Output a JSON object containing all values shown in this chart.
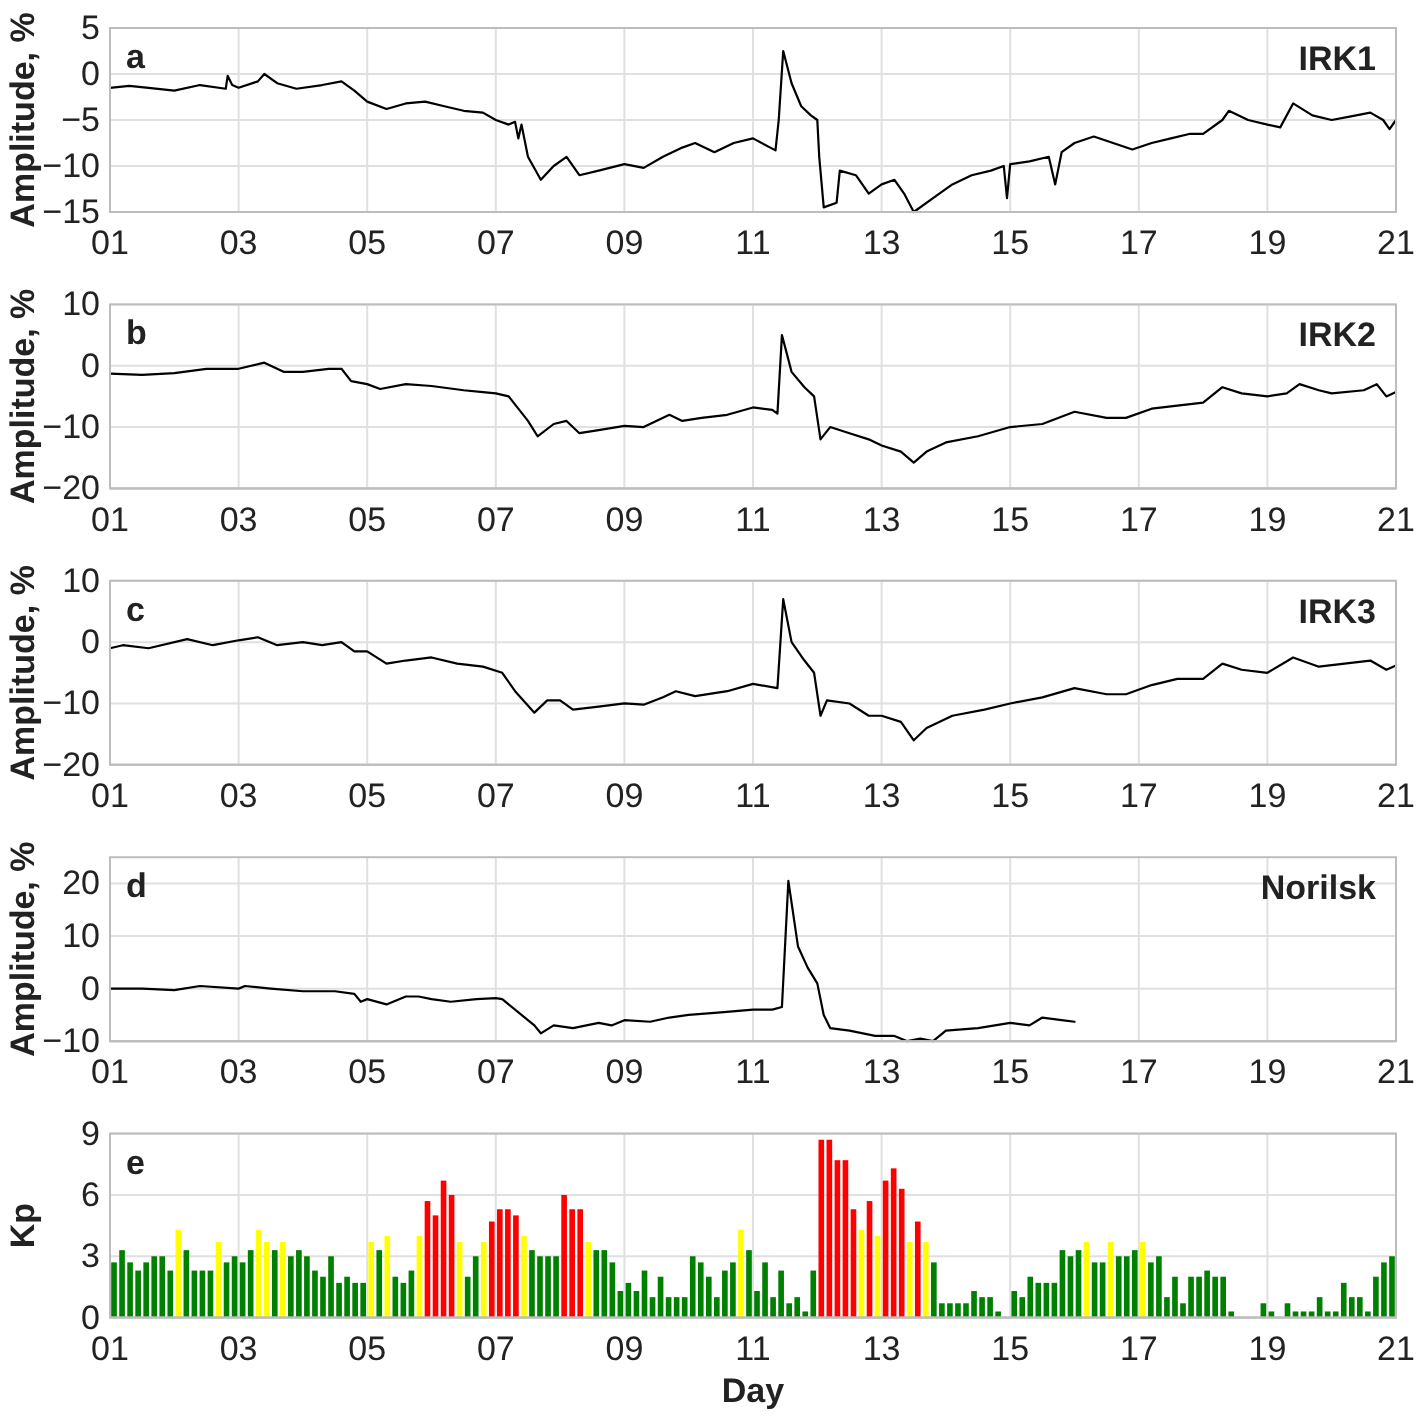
{
  "chart_data": [
    {
      "type": "line",
      "title": "IRK1",
      "annotations": [
        "a"
      ],
      "ylabel": "Amplitude, %",
      "color": "#000000",
      "grid": true,
      "xlim": [
        1,
        21
      ],
      "xticks": [
        {
          "value": 1,
          "label": "01"
        },
        {
          "value": 3,
          "label": "03"
        },
        {
          "value": 5,
          "label": "05"
        },
        {
          "value": 7,
          "label": "07"
        },
        {
          "value": 9,
          "label": "09"
        },
        {
          "value": 11,
          "label": "11"
        },
        {
          "value": 13,
          "label": "13"
        },
        {
          "value": 15,
          "label": "15"
        },
        {
          "value": 17,
          "label": "17"
        },
        {
          "value": 19,
          "label": "19"
        },
        {
          "value": 21,
          "label": "21"
        }
      ],
      "ylim": [
        -15,
        5
      ],
      "yticks": [
        -15,
        -10,
        -5,
        0,
        5
      ],
      "x": [
        1.0,
        1.3,
        1.6,
        2.0,
        2.4,
        2.8,
        2.83,
        2.9,
        3.0,
        3.3,
        3.4,
        3.6,
        3.9,
        4.3,
        4.6,
        4.8,
        5.0,
        5.3,
        5.6,
        5.9,
        6.2,
        6.5,
        6.8,
        7.0,
        7.2,
        7.3,
        7.35,
        7.4,
        7.5,
        7.7,
        7.9,
        8.1,
        8.3,
        8.6,
        9.0,
        9.3,
        9.6,
        9.9,
        10.1,
        10.4,
        10.7,
        11.0,
        11.35,
        11.4,
        11.47,
        11.6,
        11.75,
        11.9,
        12.0,
        12.03,
        12.1,
        12.3,
        12.35,
        12.6,
        12.8,
        13.0,
        13.2,
        13.35,
        13.5,
        13.8,
        14.1,
        14.4,
        14.7,
        14.9,
        14.95,
        15.0,
        15.3,
        15.6,
        15.7,
        15.8,
        16.0,
        16.3,
        16.6,
        16.9,
        17.2,
        17.5,
        17.8,
        18.0,
        18.3,
        18.4,
        18.7,
        19.0,
        19.2,
        19.4,
        19.7,
        20.0,
        20.3,
        20.6,
        20.8,
        20.9,
        21.0
      ],
      "values": [
        -1.5,
        -1.3,
        -1.5,
        -1.8,
        -1.2,
        -1.6,
        -0.2,
        -1.2,
        -1.5,
        -0.8,
        0,
        -1.0,
        -1.6,
        -1.2,
        -0.8,
        -1.8,
        -3.0,
        -3.8,
        -3.2,
        -3.0,
        -3.5,
        -4.0,
        -4.2,
        -5.0,
        -5.5,
        -5.2,
        -7,
        -5.5,
        -9,
        -11.5,
        -10,
        -9,
        -11,
        -10.5,
        -9.8,
        -10.2,
        -9,
        -8,
        -7.5,
        -8.5,
        -7.5,
        -7,
        -8.3,
        -5,
        2.5,
        -1,
        -3.5,
        -4.5,
        -5,
        -9,
        -14.5,
        -14,
        -10.5,
        -11,
        -13,
        -12,
        -11.5,
        -13,
        -15,
        -13.5,
        -12,
        -11,
        -10.5,
        -10,
        -13.5,
        -9.8,
        -9.5,
        -9,
        -12,
        -8.5,
        -7.5,
        -6.8,
        -7.5,
        -8.2,
        -7.5,
        -7,
        -6.5,
        -6.5,
        -5,
        -4,
        -5,
        -5.5,
        -5.8,
        -3.2,
        -4.5,
        -5,
        -4.6,
        -4.2,
        -5,
        -6,
        -5
      ]
    },
    {
      "type": "line",
      "title": "IRK2",
      "annotations": [
        "b"
      ],
      "ylabel": "Amplitude, %",
      "color": "#000000",
      "grid": true,
      "xlim": [
        1,
        21
      ],
      "xticks": [
        {
          "value": 1,
          "label": "01"
        },
        {
          "value": 3,
          "label": "03"
        },
        {
          "value": 5,
          "label": "05"
        },
        {
          "value": 7,
          "label": "07"
        },
        {
          "value": 9,
          "label": "09"
        },
        {
          "value": 11,
          "label": "11"
        },
        {
          "value": 13,
          "label": "13"
        },
        {
          "value": 15,
          "label": "15"
        },
        {
          "value": 17,
          "label": "17"
        },
        {
          "value": 19,
          "label": "19"
        },
        {
          "value": 21,
          "label": "21"
        }
      ],
      "ylim": [
        -20,
        10
      ],
      "yticks": [
        -20,
        -10,
        0,
        10
      ],
      "x": [
        1.0,
        1.5,
        2.0,
        2.5,
        3.0,
        3.4,
        3.7,
        4.0,
        4.4,
        4.6,
        4.75,
        5.0,
        5.2,
        5.6,
        6.0,
        6.5,
        6.8,
        7.0,
        7.2,
        7.5,
        7.65,
        7.9,
        8.1,
        8.3,
        8.6,
        9.0,
        9.3,
        9.7,
        9.9,
        10.2,
        10.6,
        11.0,
        11.3,
        11.38,
        11.45,
        11.6,
        11.8,
        11.95,
        12.05,
        12.2,
        12.5,
        12.8,
        13.0,
        13.3,
        13.5,
        13.7,
        14.0,
        14.5,
        15.0,
        15.5,
        16.0,
        16.5,
        16.8,
        17.2,
        17.6,
        18.0,
        18.3,
        18.6,
        19.0,
        19.3,
        19.5,
        19.8,
        20.0,
        20.5,
        20.7,
        20.85,
        21.0
      ],
      "values": [
        -1.3,
        -1.5,
        -1.2,
        -0.5,
        -0.5,
        0.5,
        -1,
        -1,
        -0.5,
        -0.5,
        -2.5,
        -3,
        -3.8,
        -3,
        -3.3,
        -4,
        -4.3,
        -4.5,
        -5,
        -9,
        -11.5,
        -9.5,
        -9,
        -11,
        -10.5,
        -9.8,
        -10,
        -8,
        -9,
        -8.5,
        -8,
        -6.8,
        -7.2,
        -7.8,
        5,
        -1,
        -3.5,
        -5,
        -12,
        -10,
        -11,
        -12,
        -13,
        -14,
        -15.8,
        -14,
        -12.5,
        -11.5,
        -10,
        -9.5,
        -7.5,
        -8.5,
        -8.5,
        -7,
        -6.5,
        -6,
        -3.5,
        -4.5,
        -5,
        -4.5,
        -3,
        -4,
        -4.5,
        -4,
        -3,
        -5,
        -4.3
      ]
    },
    {
      "type": "line",
      "title": "IRK3",
      "annotations": [
        "c"
      ],
      "ylabel": "Amplitude, %",
      "color": "#000000",
      "grid": true,
      "xlim": [
        1,
        21
      ],
      "xticks": [
        {
          "value": 1,
          "label": "01"
        },
        {
          "value": 3,
          "label": "03"
        },
        {
          "value": 5,
          "label": "05"
        },
        {
          "value": 7,
          "label": "07"
        },
        {
          "value": 9,
          "label": "09"
        },
        {
          "value": 11,
          "label": "11"
        },
        {
          "value": 13,
          "label": "13"
        },
        {
          "value": 15,
          "label": "15"
        },
        {
          "value": 17,
          "label": "17"
        },
        {
          "value": 19,
          "label": "19"
        },
        {
          "value": 21,
          "label": "21"
        }
      ],
      "ylim": [
        -20,
        10
      ],
      "yticks": [
        -20,
        -10,
        0,
        10
      ],
      "x": [
        1.0,
        1.2,
        1.6,
        2.2,
        2.6,
        3.0,
        3.3,
        3.6,
        4.0,
        4.3,
        4.6,
        4.8,
        5.0,
        5.3,
        5.6,
        6.0,
        6.4,
        6.8,
        7.1,
        7.3,
        7.6,
        7.8,
        8.0,
        8.2,
        8.6,
        9.0,
        9.3,
        9.6,
        9.8,
        10.1,
        10.6,
        11.0,
        11.38,
        11.47,
        11.6,
        11.8,
        11.95,
        12.05,
        12.15,
        12.5,
        12.8,
        13.0,
        13.3,
        13.5,
        13.7,
        14.1,
        14.6,
        15.0,
        15.5,
        16.0,
        16.5,
        16.8,
        17.2,
        17.6,
        18.0,
        18.3,
        18.6,
        19.0,
        19.4,
        19.8,
        20.2,
        20.6,
        20.85,
        21.0
      ],
      "values": [
        -1,
        -0.5,
        -1,
        0.5,
        -0.5,
        0.3,
        0.8,
        -0.5,
        0,
        -0.5,
        0,
        -1.5,
        -1.5,
        -3.5,
        -3,
        -2.5,
        -3.5,
        -4,
        -5,
        -8,
        -11.5,
        -9.5,
        -9.5,
        -11,
        -10.5,
        -10,
        -10.2,
        -9,
        -8,
        -8.8,
        -8,
        -6.8,
        -7.5,
        7,
        0,
        -3,
        -5,
        -12,
        -9.5,
        -10,
        -12,
        -12,
        -13,
        -16,
        -14,
        -12,
        -11,
        -10,
        -9,
        -7.5,
        -8.5,
        -8.5,
        -7,
        -6,
        -6,
        -3.5,
        -4.5,
        -5,
        -2.5,
        -4,
        -3.5,
        -3,
        -4.5,
        -3.8
      ]
    },
    {
      "type": "line",
      "title": "Norilsk",
      "annotations": [
        "d"
      ],
      "ylabel": "Amplitude, %",
      "color": "#000000",
      "grid": true,
      "xlim": [
        1,
        21
      ],
      "xticks": [
        {
          "value": 1,
          "label": "01"
        },
        {
          "value": 3,
          "label": "03"
        },
        {
          "value": 5,
          "label": "05"
        },
        {
          "value": 7,
          "label": "07"
        },
        {
          "value": 9,
          "label": "09"
        },
        {
          "value": 11,
          "label": "11"
        },
        {
          "value": 13,
          "label": "13"
        },
        {
          "value": 15,
          "label": "15"
        },
        {
          "value": 17,
          "label": "17"
        },
        {
          "value": 19,
          "label": "19"
        },
        {
          "value": 21,
          "label": "21"
        }
      ],
      "ylim": [
        -10,
        25
      ],
      "yticks": [
        -10,
        0,
        10,
        20
      ],
      "x": [
        1.0,
        1.5,
        2.0,
        2.4,
        3.0,
        3.1,
        3.5,
        4.0,
        4.5,
        4.8,
        4.9,
        5.0,
        5.3,
        5.6,
        5.8,
        6.0,
        6.3,
        6.7,
        7.0,
        7.1,
        7.4,
        7.6,
        7.7,
        7.9,
        8.2,
        8.6,
        8.8,
        9.0,
        9.4,
        9.7,
        10.0,
        10.5,
        11.0,
        11.3,
        11.45,
        11.55,
        11.7,
        11.85,
        12.0,
        12.1,
        12.2,
        12.5,
        12.9,
        13.2,
        13.4,
        13.6,
        13.8,
        14.0,
        14.5,
        15.0,
        15.3,
        15.5,
        15.8,
        16.0
      ],
      "values": [
        0,
        0,
        -0.3,
        0.5,
        0,
        0.5,
        0,
        -0.5,
        -0.5,
        -1,
        -2.5,
        -2,
        -3,
        -1.5,
        -1.5,
        -2,
        -2.5,
        -2,
        -1.8,
        -2,
        -5,
        -7,
        -8.5,
        -7,
        -7.5,
        -6.5,
        -7,
        -6,
        -6.3,
        -5.5,
        -5,
        -4.5,
        -4,
        -4,
        -3.5,
        20.5,
        8,
        4,
        1,
        -5,
        -7.5,
        -8,
        -9,
        -9,
        -10,
        -9.5,
        -10,
        -8,
        -7.5,
        -6.5,
        -7,
        -5.5,
        -6,
        -6.3
      ]
    },
    {
      "type": "bar",
      "annotations": [
        "e"
      ],
      "ylabel": "Kp",
      "xlabel": "Day",
      "grid": true,
      "xlim": [
        1,
        21
      ],
      "xticks": [
        {
          "value": 1,
          "label": "01"
        },
        {
          "value": 3,
          "label": "03"
        },
        {
          "value": 5,
          "label": "05"
        },
        {
          "value": 7,
          "label": "07"
        },
        {
          "value": 9,
          "label": "09"
        },
        {
          "value": 11,
          "label": "11"
        },
        {
          "value": 13,
          "label": "13"
        },
        {
          "value": 15,
          "label": "15"
        },
        {
          "value": 17,
          "label": "17"
        },
        {
          "value": 19,
          "label": "19"
        },
        {
          "value": 21,
          "label": "21"
        }
      ],
      "ylim": [
        0,
        9
      ],
      "yticks": [
        0,
        3,
        6,
        9
      ],
      "x": [
        1.0625,
        1.1875,
        1.3125,
        1.4375,
        1.5625,
        1.6875,
        1.8125,
        1.9375,
        2.0625,
        2.1875,
        2.3125,
        2.4375,
        2.5625,
        2.6875,
        2.8125,
        2.9375,
        3.0625,
        3.1875,
        3.3125,
        3.4375,
        3.5625,
        3.6875,
        3.8125,
        3.9375,
        4.0625,
        4.1875,
        4.3125,
        4.4375,
        4.5625,
        4.6875,
        4.8125,
        4.9375,
        5.0625,
        5.1875,
        5.3125,
        5.4375,
        5.5625,
        5.6875,
        5.8125,
        5.9375,
        6.0625,
        6.1875,
        6.3125,
        6.4375,
        6.5625,
        6.6875,
        6.8125,
        6.9375,
        7.0625,
        7.1875,
        7.3125,
        7.4375,
        7.5625,
        7.6875,
        7.8125,
        7.9375,
        8.0625,
        8.1875,
        8.3125,
        8.4375,
        8.5625,
        8.6875,
        8.8125,
        8.9375,
        9.0625,
        9.1875,
        9.3125,
        9.4375,
        9.5625,
        9.6875,
        9.8125,
        9.9375,
        10.0625,
        10.1875,
        10.3125,
        10.4375,
        10.5625,
        10.6875,
        10.8125,
        10.9375,
        11.0625,
        11.1875,
        11.3125,
        11.4375,
        11.5625,
        11.6875,
        11.8125,
        11.9375,
        12.0625,
        12.1875,
        12.3125,
        12.4375,
        12.5625,
        12.6875,
        12.8125,
        12.9375,
        13.0625,
        13.1875,
        13.3125,
        13.4375,
        13.5625,
        13.6875,
        13.8125,
        13.9375,
        14.0625,
        14.1875,
        14.3125,
        14.4375,
        14.5625,
        14.6875,
        14.8125,
        14.9375,
        15.0625,
        15.1875,
        15.3125,
        15.4375,
        15.5625,
        15.6875,
        15.8125,
        15.9375,
        16.0625,
        16.1875,
        16.3125,
        16.4375,
        16.5625,
        16.6875,
        16.8125,
        16.9375,
        17.0625,
        17.1875,
        17.3125,
        17.4375,
        17.5625,
        17.6875,
        17.8125,
        17.9375,
        18.0625,
        18.1875,
        18.3125,
        18.4375,
        18.5625,
        18.6875,
        18.8125,
        18.9375,
        19.0625,
        19.1875,
        19.3125,
        19.4375,
        19.5625,
        19.6875,
        19.8125,
        19.9375,
        20.0625,
        20.1875,
        20.3125,
        20.4375,
        20.5625,
        20.6875,
        20.8125,
        20.9375
      ],
      "values": [
        2.7,
        3.3,
        2.7,
        2.3,
        2.7,
        3,
        3,
        2.3,
        4.3,
        3.3,
        2.3,
        2.3,
        2.3,
        3.7,
        2.7,
        3,
        2.7,
        3.3,
        4.3,
        3.7,
        3.3,
        3.7,
        3,
        3.3,
        3,
        2.3,
        2,
        3,
        1.7,
        2,
        1.7,
        1.7,
        3.7,
        3.3,
        4,
        2,
        1.7,
        2.3,
        4,
        5.7,
        5,
        6.7,
        6,
        3.7,
        2,
        3,
        3.7,
        4.7,
        5.3,
        5.3,
        5,
        4,
        3.3,
        3,
        3,
        3,
        6,
        5.3,
        5.3,
        3.7,
        3.3,
        3.3,
        2.7,
        1.3,
        1.7,
        1.3,
        2.3,
        1,
        2,
        1,
        1,
        1,
        3,
        2.7,
        2,
        1,
        2.3,
        2.7,
        4.3,
        3.3,
        1.3,
        2.7,
        1,
        2.3,
        0.7,
        1,
        0.3,
        2.3,
        8.7,
        8.7,
        7.7,
        7.7,
        5.3,
        4.3,
        5.7,
        4,
        6.7,
        7.3,
        6.3,
        3.7,
        4.7,
        3.7,
        2.7,
        0.7,
        0.7,
        0.7,
        0.7,
        1.3,
        1,
        1,
        0.3,
        0,
        1.3,
        1,
        2,
        1.7,
        1.7,
        1.7,
        3.3,
        3,
        3.3,
        3.7,
        2.7,
        2.7,
        3.7,
        3,
        3,
        3.3,
        3.7,
        2.7,
        3,
        1,
        2,
        0.7,
        2,
        2,
        2.3,
        2,
        2,
        0.3,
        0,
        0,
        0,
        0.7,
        0.3,
        0,
        0.7,
        0.3,
        0.3,
        0.3,
        1,
        0.3,
        0.3,
        1.7,
        1,
        1,
        0.3,
        2,
        2.7,
        3
      ],
      "colors": [
        "#008000",
        "#008000",
        "#008000",
        "#008000",
        "#008000",
        "#008000",
        "#008000",
        "#008000",
        "#ffff00",
        "#008000",
        "#008000",
        "#008000",
        "#008000",
        "#ffff00",
        "#008000",
        "#008000",
        "#008000",
        "#008000",
        "#ffff00",
        "#ffff00",
        "#008000",
        "#ffff00",
        "#008000",
        "#008000",
        "#008000",
        "#008000",
        "#008000",
        "#008000",
        "#008000",
        "#008000",
        "#008000",
        "#008000",
        "#ffff00",
        "#008000",
        "#ffff00",
        "#008000",
        "#008000",
        "#008000",
        "#ffff00",
        "#ff0000",
        "#ff0000",
        "#ff0000",
        "#ff0000",
        "#ffff00",
        "#008000",
        "#008000",
        "#ffff00",
        "#ff0000",
        "#ff0000",
        "#ff0000",
        "#ff0000",
        "#ffff00",
        "#008000",
        "#008000",
        "#008000",
        "#008000",
        "#ff0000",
        "#ff0000",
        "#ff0000",
        "#ffff00",
        "#008000",
        "#008000",
        "#008000",
        "#008000",
        "#008000",
        "#008000",
        "#008000",
        "#008000",
        "#008000",
        "#008000",
        "#008000",
        "#008000",
        "#008000",
        "#008000",
        "#008000",
        "#008000",
        "#008000",
        "#008000",
        "#ffff00",
        "#008000",
        "#008000",
        "#008000",
        "#008000",
        "#008000",
        "#008000",
        "#008000",
        "#008000",
        "#008000",
        "#ff0000",
        "#ff0000",
        "#ff0000",
        "#ff0000",
        "#ff0000",
        "#ffff00",
        "#ff0000",
        "#ffff00",
        "#ff0000",
        "#ff0000",
        "#ff0000",
        "#ffff00",
        "#ff0000",
        "#ffff00",
        "#008000",
        "#008000",
        "#008000",
        "#008000",
        "#008000",
        "#008000",
        "#008000",
        "#008000",
        "#008000",
        "#008000",
        "#008000",
        "#008000",
        "#008000",
        "#008000",
        "#008000",
        "#008000",
        "#008000",
        "#008000",
        "#008000",
        "#ffff00",
        "#008000",
        "#008000",
        "#ffff00",
        "#008000",
        "#008000",
        "#008000",
        "#ffff00",
        "#008000",
        "#008000",
        "#008000",
        "#008000",
        "#008000",
        "#008000",
        "#008000",
        "#008000",
        "#008000",
        "#008000",
        "#008000",
        "#008000",
        "#008000",
        "#008000",
        "#008000",
        "#008000",
        "#008000",
        "#008000",
        "#008000",
        "#008000",
        "#008000",
        "#008000",
        "#008000",
        "#008000",
        "#008000",
        "#008000",
        "#008000",
        "#008000",
        "#008000",
        "#008000",
        "#008000"
      ]
    }
  ]
}
